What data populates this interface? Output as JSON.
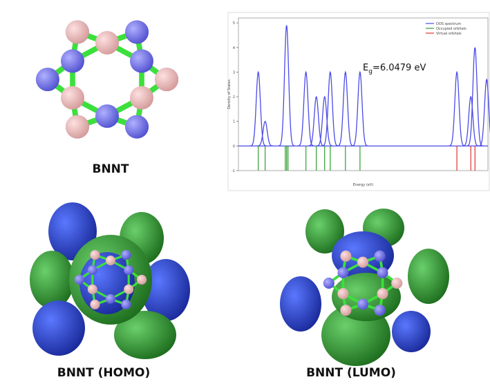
{
  "labels": {
    "structure": "BNNT",
    "homo": "BNNT (HOMO)",
    "lumo": "BNNT (LUMO)"
  },
  "chart_data": {
    "type": "dos",
    "ylabel": "Density of States",
    "xlabel": "Energy (eV)",
    "annotation": {
      "symbol": "E",
      "subscript": "g",
      "text": "=6.0479 eV"
    },
    "xlim": [
      -14.6,
      1.0
    ],
    "ylim": [
      -1,
      5.2
    ],
    "yticks": [
      -1,
      0,
      1,
      2,
      3,
      4,
      5
    ],
    "legend": "upper right",
    "series": [
      {
        "name": "DOS spectrum",
        "color": "#4a4ae8",
        "x": [
          -13.36,
          -12.93,
          -11.59,
          -10.38,
          -9.73,
          -9.21,
          -8.86,
          -7.91,
          -7.0,
          -0.94,
          -0.07,
          0.19,
          0.92
        ],
        "values": [
          3.0,
          1.0,
          4.9,
          3.0,
          2.0,
          2.0,
          3.0,
          3.0,
          3.0,
          3.0,
          2.0,
          4.0,
          2.7
        ]
      },
      {
        "name": "Occupied orbitals",
        "color": "#2e9e2e",
        "x": [
          -13.36,
          -12.93,
          -11.67,
          -11.59,
          -11.5,
          -10.38,
          -9.73,
          -9.21,
          -8.86,
          -7.91,
          -7.0
        ]
      },
      {
        "name": "Virtual orbitals",
        "color": "#e03030",
        "x": [
          -0.94,
          -0.07,
          0.19
        ]
      }
    ]
  }
}
